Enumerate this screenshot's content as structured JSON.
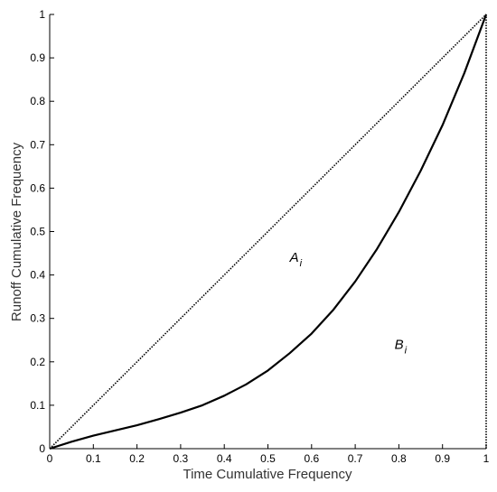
{
  "chart_data": {
    "type": "line",
    "title": "",
    "xlabel": "Time Cumulative Frequency",
    "ylabel": "Runoff Cumulative Frequency",
    "xlim": [
      0,
      1
    ],
    "ylim": [
      0,
      1
    ],
    "xticks": [
      "0",
      "0.1",
      "0.2",
      "0.3",
      "0.4",
      "0.5",
      "0.6",
      "0.7",
      "0.8",
      "0.9",
      "1"
    ],
    "yticks": [
      "0",
      "0.1",
      "0.2",
      "0.3",
      "0.4",
      "0.5",
      "0.6",
      "0.7",
      "0.8",
      "0.9",
      "1"
    ],
    "grid": false,
    "legend": "none",
    "series": [
      {
        "style": "dotted",
        "color": "#000000",
        "x": [
          0,
          1
        ],
        "y": [
          0,
          1
        ]
      },
      {
        "style": "solid",
        "color": "#000000",
        "x": [
          0,
          0.05,
          0.1,
          0.15,
          0.2,
          0.25,
          0.3,
          0.35,
          0.4,
          0.45,
          0.5,
          0.55,
          0.6,
          0.65,
          0.7,
          0.75,
          0.8,
          0.85,
          0.9,
          0.95,
          1.0
        ],
        "y": [
          0,
          0.016,
          0.03,
          0.042,
          0.054,
          0.068,
          0.083,
          0.1,
          0.122,
          0.148,
          0.18,
          0.22,
          0.265,
          0.32,
          0.385,
          0.46,
          0.545,
          0.64,
          0.745,
          0.865,
          1.0
        ]
      },
      {
        "style": "dotted",
        "color": "#000000",
        "x": [
          1,
          1
        ],
        "y": [
          0,
          1
        ]
      }
    ],
    "annotations": [
      {
        "base": "A",
        "sub": "i",
        "x": 0.55,
        "y": 0.43
      },
      {
        "base": "B",
        "sub": "i",
        "x": 0.79,
        "y": 0.23
      }
    ]
  }
}
